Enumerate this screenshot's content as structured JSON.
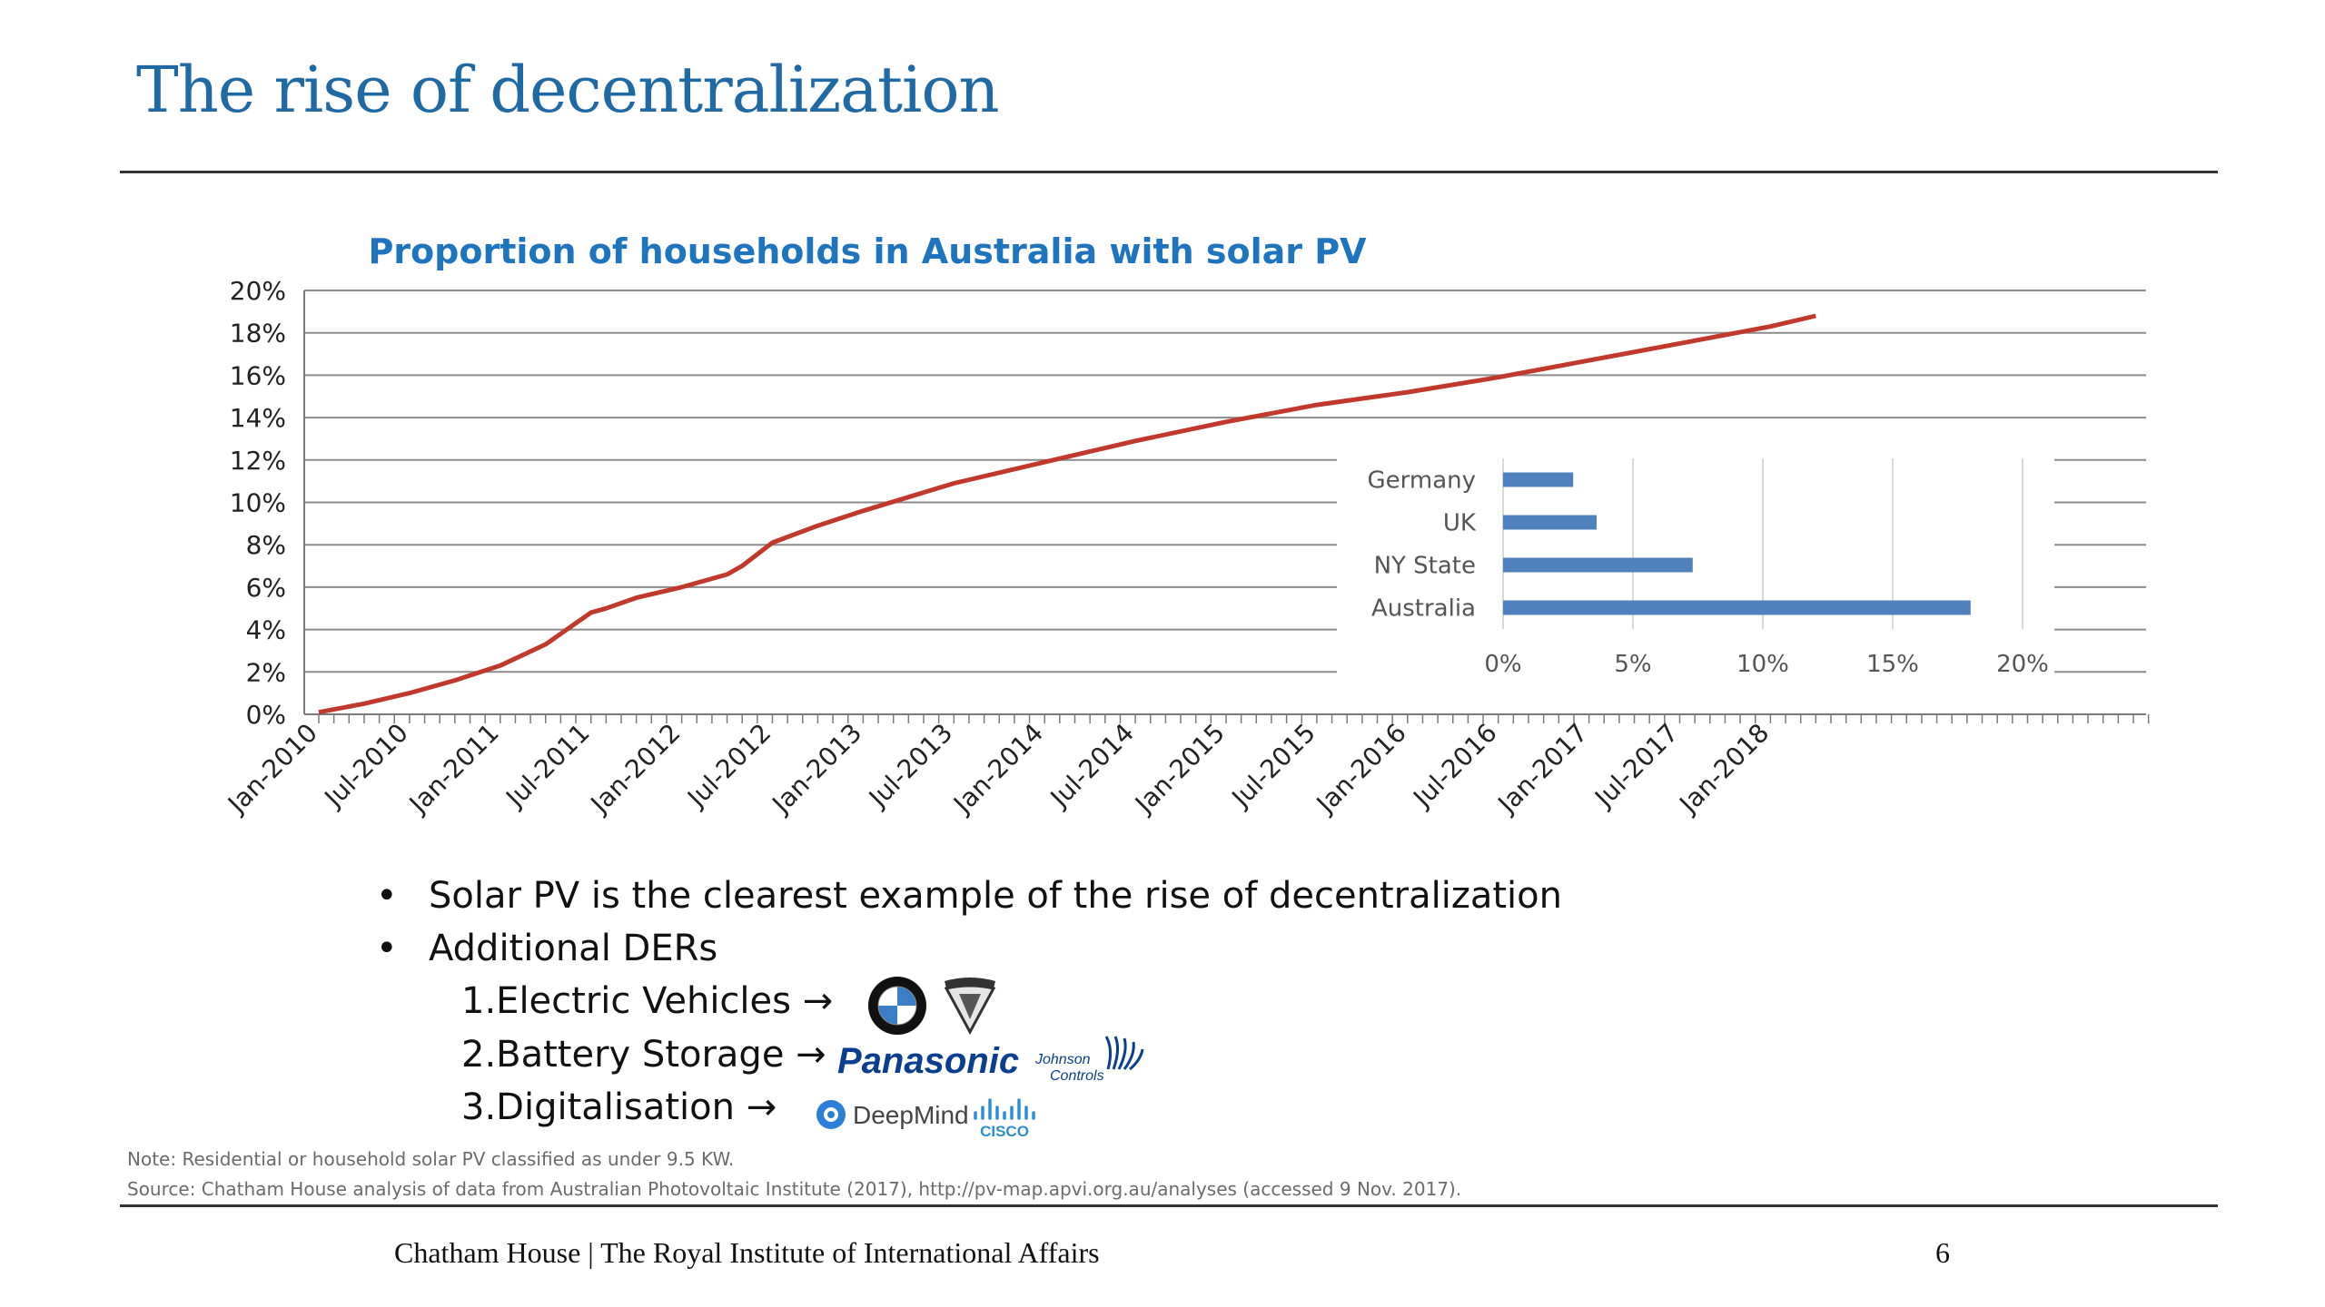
{
  "slide": {
    "title": "The rise of decentralization",
    "page_number": "6",
    "footer": "Chatham House  |  The Royal Institute of International Affairs"
  },
  "chart_data": [
    {
      "type": "line",
      "title": "Proportion of households in Australia with solar PV",
      "xlabel": "",
      "ylabel": "",
      "x_tick_labels": [
        "Jan-2010",
        "Jul-2010",
        "Jan-2011",
        "Jul-2011",
        "Jan-2012",
        "Jul-2012",
        "Jan-2013",
        "Jul-2013",
        "Jan-2014",
        "Jul-2014",
        "Jan-2015",
        "Jul-2015",
        "Jan-2016",
        "Jul-2016",
        "Jan-2017",
        "Jul-2017",
        "Jan-2018"
      ],
      "y_tick_labels": [
        "0%",
        "2%",
        "4%",
        "6%",
        "8%",
        "10%",
        "12%",
        "14%",
        "16%",
        "18%",
        "20%"
      ],
      "ylim": [
        0,
        20
      ],
      "grid": true,
      "color": "#c0392b",
      "series": [
        {
          "x": [
            "Jan-2010",
            "Apr-2010",
            "Jul-2010",
            "Oct-2010",
            "Jan-2011",
            "Apr-2011",
            "Jul-2011",
            "Aug-2011",
            "Oct-2011",
            "Jan-2012",
            "Apr-2012",
            "May-2012",
            "Jul-2012",
            "Oct-2012",
            "Jan-2013",
            "Jul-2013",
            "Jan-2014",
            "Jul-2014",
            "Jan-2015",
            "Jul-2015",
            "Jan-2016",
            "Jul-2016",
            "Jan-2017",
            "Jul-2017",
            "Jan-2018",
            "Apr-2018"
          ],
          "values": [
            0.1,
            0.5,
            1.0,
            1.6,
            2.3,
            3.3,
            4.8,
            5.0,
            5.5,
            6.0,
            6.6,
            7.0,
            8.1,
            8.9,
            9.6,
            10.9,
            11.9,
            12.9,
            13.8,
            14.6,
            15.2,
            15.9,
            16.7,
            17.5,
            18.3,
            18.8
          ]
        }
      ]
    },
    {
      "type": "bar",
      "orientation": "horizontal",
      "categories": [
        "Germany",
        "UK",
        "NY State",
        "Australia"
      ],
      "values": [
        2.7,
        3.6,
        7.3,
        18.0
      ],
      "x_tick_labels": [
        "0%",
        "5%",
        "10%",
        "15%",
        "20%"
      ],
      "xlim": [
        0,
        20
      ],
      "grid": true,
      "color": "#4f81bd"
    }
  ],
  "bullets": [
    "Solar PV is the clearest example of the rise of decentralization",
    "Additional DERs"
  ],
  "bullet_symbol": "•",
  "ders": [
    {
      "label": "1.Electric Vehicles ",
      "arrow": "→"
    },
    {
      "label": "2.Battery Storage ",
      "arrow": "→"
    },
    {
      "label": "3.Digitalisation ",
      "arrow": "→"
    }
  ],
  "logos": {
    "panasonic": "Panasonic",
    "johnson_1": "Johnson",
    "johnson_2": "Controls",
    "deepmind": "DeepMind",
    "cisco": "CISCO"
  },
  "note": "Note: Residential or household solar PV classified as under 9.5 KW.",
  "source": "Source: Chatham House analysis of data from Australian Photovoltaic Institute (2017), http://pv-map.apvi.org.au/analyses (accessed 9 Nov. 2017)."
}
